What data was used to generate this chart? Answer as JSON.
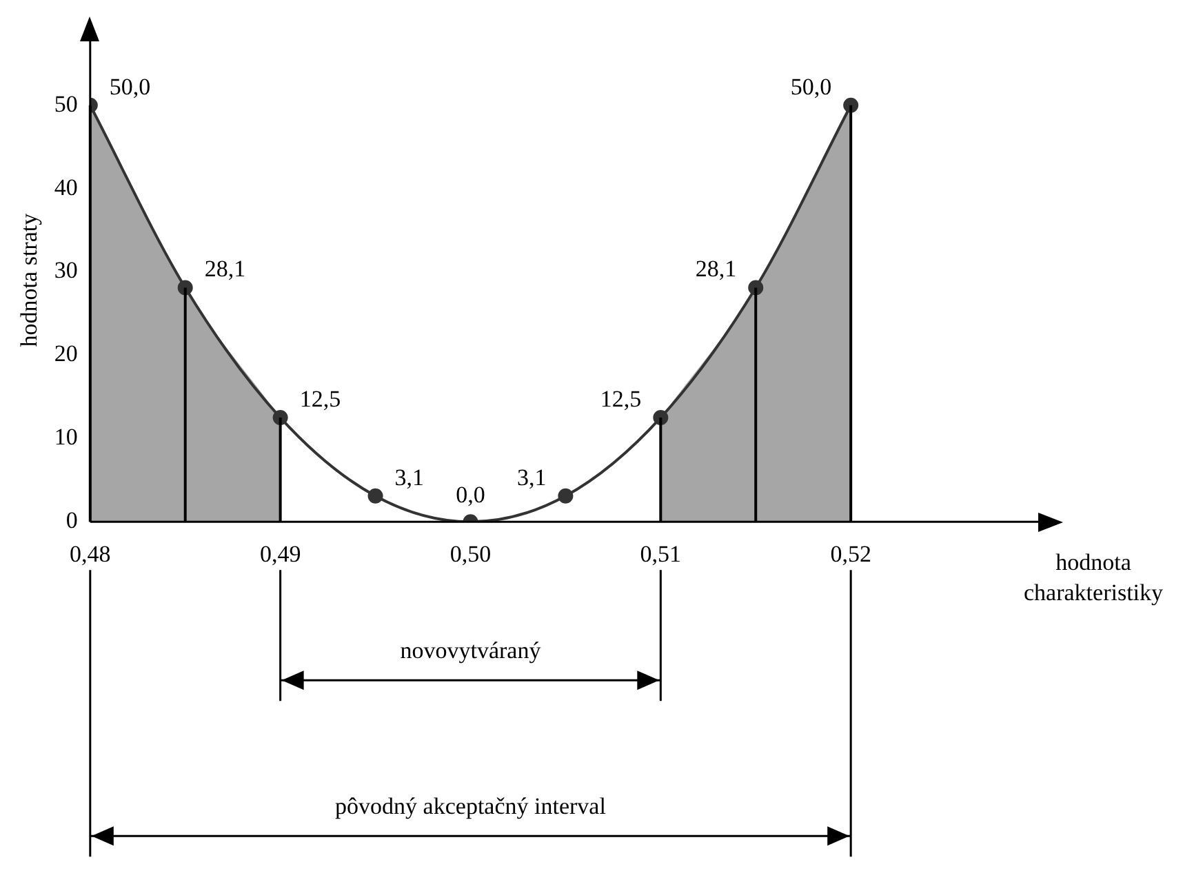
{
  "chart_data": {
    "type": "line",
    "ylabel": "hodnota straty",
    "xlabel": "hodnota charakteristiky",
    "x": [
      0.48,
      0.485,
      0.49,
      0.495,
      0.5,
      0.505,
      0.51,
      0.515,
      0.52
    ],
    "series": [
      {
        "type": "area",
        "marker": "none",
        "color": "#a6a6a6",
        "x": [
          0.48,
          0.485,
          0.49
        ],
        "values": [
          50,
          28.1,
          12.5
        ]
      },
      {
        "type": "area",
        "marker": "none",
        "color": "#a6a6a6",
        "x": [
          0.51,
          0.515,
          0.52
        ],
        "values": [
          12.5,
          28.1,
          50
        ]
      },
      {
        "color": "#333333",
        "values": [
          50,
          28.1,
          12.5,
          3.1,
          0,
          3.1,
          12.5,
          28.1,
          50
        ],
        "value_labels": [
          "50,0",
          "28,1",
          "12,5",
          "3,1",
          "0,0",
          "3,1",
          "12,5",
          "28,1",
          "50,0"
        ]
      }
    ],
    "xlim": [
      0.48,
      0.53
    ],
    "xticks": [
      {
        "value": 0.48,
        "label": "0,48"
      },
      {
        "value": 0.49,
        "label": "0,49"
      },
      {
        "value": 0.5,
        "label": "0,50"
      },
      {
        "value": 0.51,
        "label": "0,51"
      },
      {
        "value": 0.52,
        "label": "0,52"
      }
    ],
    "ylim": [
      0,
      58
    ],
    "yticks": [
      0,
      10,
      20,
      30,
      40,
      50
    ],
    "ref_lines": [
      {
        "axis": "x",
        "value": 0.49
      },
      {
        "axis": "x",
        "value": 0.51
      },
      {
        "axis": "x",
        "value": 0.48
      },
      {
        "axis": "x",
        "value": 0.52
      }
    ],
    "annotations": [
      "novovytváraný",
      "pôvodný akceptačný interval"
    ],
    "grid": false,
    "legend": false,
    "marker": "circle",
    "line_style": "solid"
  }
}
